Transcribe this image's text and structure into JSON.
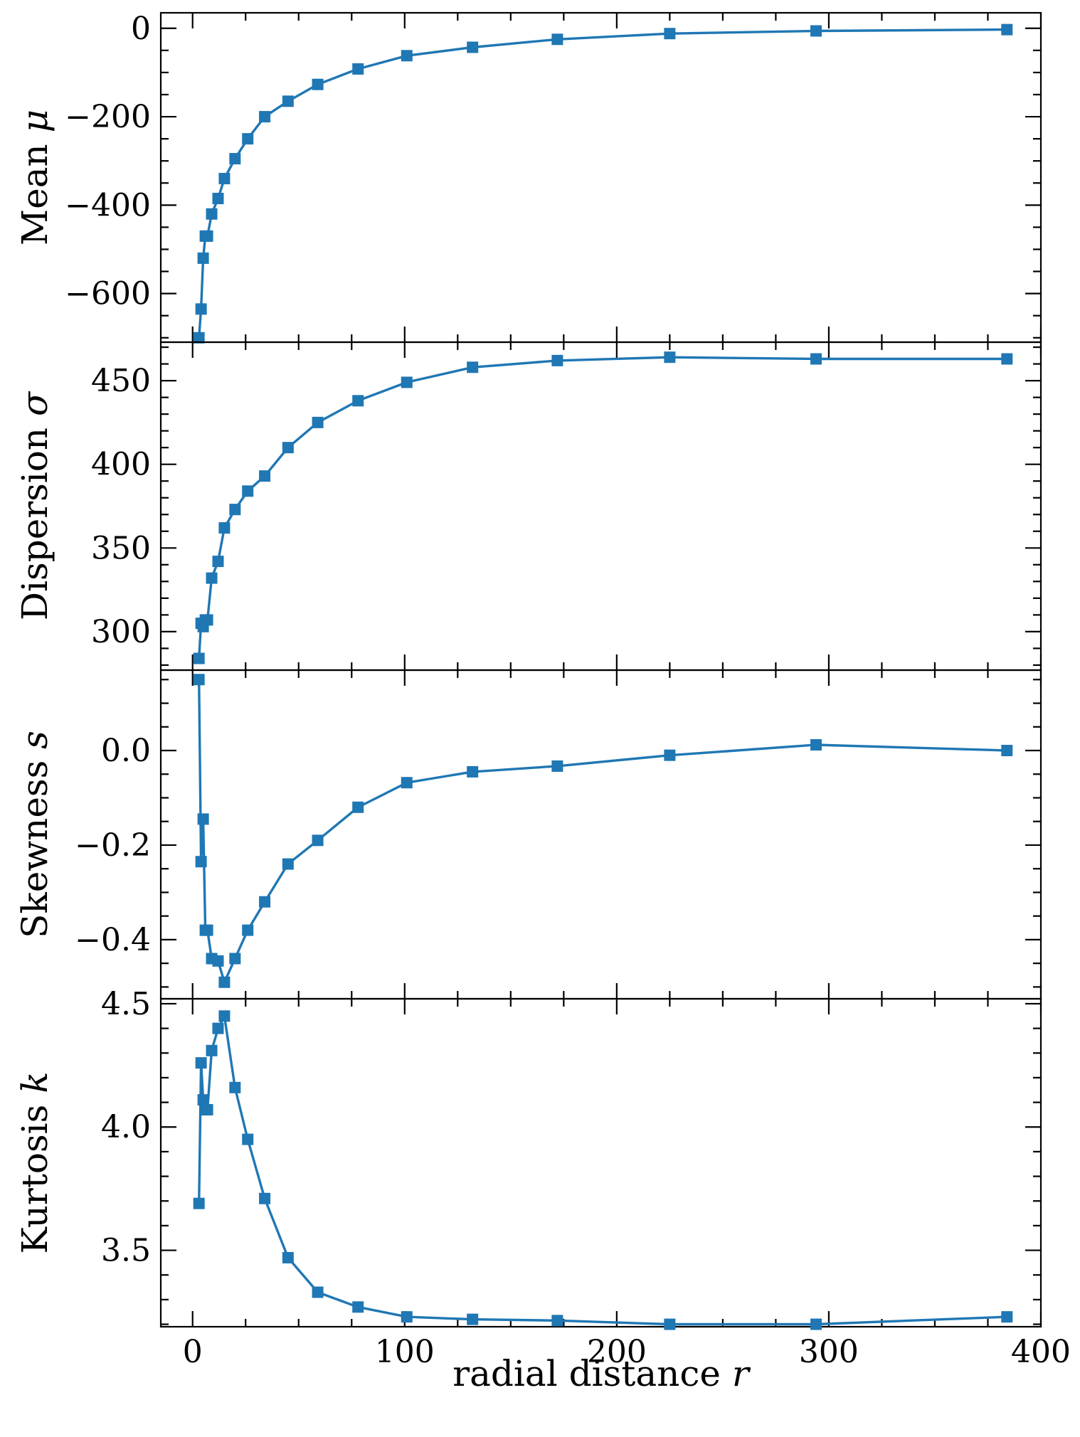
{
  "chart_data": {
    "type": "line",
    "layout": "4 vertically stacked panels with shared x axis",
    "shared_x": {
      "label": "radial distance",
      "label_symbol": "r",
      "xlim": [
        -15,
        400
      ],
      "ticks": [
        0,
        100,
        200,
        300,
        400
      ],
      "tick_labels": [
        "0",
        "100",
        "200",
        "300",
        "400"
      ]
    },
    "x": [
      3,
      4,
      5,
      6,
      7,
      9,
      12,
      15,
      20,
      26,
      34,
      45,
      59,
      78,
      101,
      132,
      172,
      225,
      294,
      384
    ],
    "panels": [
      {
        "ylabel": "Mean",
        "ylabel_symbol": "μ",
        "ylim": [
          -710,
          35
        ],
        "ticks": [
          0,
          -200,
          -400,
          -600
        ],
        "tick_labels": [
          "0",
          "−200",
          "−400",
          "−600"
        ],
        "minor_step": 50,
        "values": [
          -700,
          -635,
          -520,
          -470,
          -470,
          -420,
          -385,
          -340,
          -295,
          -250,
          -200,
          -165,
          -127,
          -92,
          -62,
          -43,
          -25,
          -12,
          -6,
          -3
        ]
      },
      {
        "ylabel": "Dispersion",
        "ylabel_symbol": "σ",
        "ylim": [
          277,
          473
        ],
        "ticks": [
          300,
          350,
          400,
          450
        ],
        "tick_labels": [
          "300",
          "350",
          "400",
          "450"
        ],
        "minor_step": 10,
        "values": [
          284,
          305,
          303,
          307,
          307,
          332,
          342,
          362,
          373,
          384,
          393,
          410,
          425,
          438,
          449,
          458,
          462,
          464,
          463,
          463
        ]
      },
      {
        "ylabel": "Skewness",
        "ylabel_symbol": "s",
        "ylim": [
          -0.525,
          0.17
        ],
        "ticks": [
          0.0,
          -0.2,
          -0.4
        ],
        "tick_labels": [
          "0.0",
          "−0.2",
          "−0.4"
        ],
        "minor_step": 0.05,
        "values": [
          0.15,
          -0.235,
          -0.145,
          -0.38,
          -0.38,
          -0.44,
          -0.445,
          -0.49,
          -0.44,
          -0.38,
          -0.32,
          -0.24,
          -0.19,
          -0.12,
          -0.068,
          -0.045,
          -0.033,
          -0.01,
          0.012,
          0.0
        ]
      },
      {
        "ylabel": "Kurtosis",
        "ylabel_symbol": "k",
        "ylim": [
          3.19,
          4.52
        ],
        "ticks": [
          3.5,
          4.0,
          4.5
        ],
        "tick_labels": [
          "3.5",
          "4.0",
          "4.5"
        ],
        "minor_step": 0.1,
        "values": [
          3.69,
          4.26,
          4.11,
          4.07,
          4.07,
          4.31,
          4.4,
          4.45,
          4.16,
          3.95,
          3.71,
          3.47,
          3.33,
          3.27,
          3.23,
          3.22,
          3.215,
          3.2,
          3.2,
          3.23
        ]
      }
    ],
    "series_color": "#1f77b4",
    "marker": "square",
    "grid": false,
    "legend": "none"
  }
}
